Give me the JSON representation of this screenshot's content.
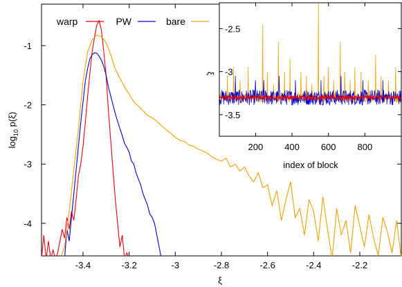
{
  "colors": {
    "warp": "#e8000b",
    "PW": "#0000d0",
    "bare": "#f0a000",
    "axis": "#000000"
  },
  "chart_data": [
    {
      "type": "line",
      "title": "",
      "xlabel": "ξ",
      "ylabel_main": "log",
      "ylabel_sub": "10",
      "ylabel_tail": " p(ξ)",
      "xlim": [
        -3.58,
        -2.02
      ],
      "ylim": [
        -4.55,
        -0.3
      ],
      "xticks": [
        -3.4,
        -3.2,
        -3.0,
        -2.8,
        -2.6,
        -2.4,
        -2.2
      ],
      "xtick_labels": [
        "-3.4",
        "-3.2",
        "-3",
        "-2.8",
        "-2.6",
        "-2.4",
        "-2.2"
      ],
      "yticks": [
        -1,
        -2,
        -3,
        -4
      ],
      "ytick_labels": [
        "-1",
        "-2",
        "-3",
        "-4"
      ],
      "legend": "top-left",
      "series": [
        {
          "name": "warp",
          "color": "#e8000b",
          "x": [
            -3.58,
            -3.57,
            -3.56,
            -3.55,
            -3.54,
            -3.53,
            -3.52,
            -3.51,
            -3.5,
            -3.49,
            -3.48,
            -3.47,
            -3.46,
            -3.45,
            -3.44,
            -3.43,
            -3.42,
            -3.41,
            -3.4,
            -3.39,
            -3.38,
            -3.37,
            -3.36,
            -3.35,
            -3.34,
            -3.33,
            -3.32,
            -3.31,
            -3.3,
            -3.29,
            -3.28,
            -3.27,
            -3.26,
            -3.25,
            -3.24,
            -3.23,
            -3.22,
            -3.21,
            -3.2,
            -3.19
          ],
          "y": [
            -4.6,
            -4.2,
            -4.6,
            -4.3,
            -4.6,
            -4.45,
            -4.6,
            -4.5,
            -4.3,
            -4.1,
            -4.25,
            -3.9,
            -4.1,
            -3.8,
            -3.95,
            -3.6,
            -3.2,
            -3.0,
            -2.7,
            -2.3,
            -1.85,
            -1.45,
            -1.1,
            -0.85,
            -0.65,
            -0.58,
            -0.75,
            -1.1,
            -1.5,
            -2.1,
            -2.6,
            -3.1,
            -3.6,
            -4.0,
            -4.4,
            -4.2,
            -4.6,
            -4.5,
            -4.6,
            -4.6
          ]
        },
        {
          "name": "PW",
          "color": "#0000d0",
          "x": [
            -3.48,
            -3.47,
            -3.46,
            -3.45,
            -3.44,
            -3.43,
            -3.42,
            -3.41,
            -3.4,
            -3.39,
            -3.38,
            -3.37,
            -3.36,
            -3.35,
            -3.34,
            -3.33,
            -3.32,
            -3.31,
            -3.3,
            -3.29,
            -3.28,
            -3.27,
            -3.26,
            -3.25,
            -3.24,
            -3.23,
            -3.22,
            -3.21,
            -3.2,
            -3.19,
            -3.18,
            -3.17,
            -3.16,
            -3.15,
            -3.14,
            -3.13,
            -3.12,
            -3.11,
            -3.1,
            -3.09,
            -3.08,
            -3.07,
            -3.06
          ],
          "y": [
            -4.6,
            -4.1,
            -4.3,
            -3.9,
            -3.5,
            -3.1,
            -2.7,
            -2.3,
            -1.95,
            -1.6,
            -1.38,
            -1.22,
            -1.15,
            -1.12,
            -1.13,
            -1.18,
            -1.25,
            -1.35,
            -1.5,
            -1.7,
            -1.85,
            -2.0,
            -2.15,
            -2.28,
            -2.4,
            -2.52,
            -2.65,
            -2.72,
            -2.8,
            -2.95,
            -3.0,
            -3.15,
            -3.25,
            -3.35,
            -3.5,
            -3.6,
            -3.7,
            -3.85,
            -3.9,
            -4.0,
            -4.2,
            -4.4,
            -4.6
          ]
        },
        {
          "name": "bare",
          "color": "#f0a000",
          "x": [
            -3.58,
            -3.56,
            -3.54,
            -3.52,
            -3.5,
            -3.48,
            -3.46,
            -3.44,
            -3.42,
            -3.4,
            -3.38,
            -3.36,
            -3.34,
            -3.32,
            -3.3,
            -3.28,
            -3.26,
            -3.24,
            -3.22,
            -3.2,
            -3.18,
            -3.16,
            -3.14,
            -3.12,
            -3.1,
            -3.08,
            -3.06,
            -3.04,
            -3.02,
            -3.0,
            -2.98,
            -2.96,
            -2.94,
            -2.92,
            -2.9,
            -2.88,
            -2.86,
            -2.84,
            -2.82,
            -2.8,
            -2.78,
            -2.76,
            -2.74,
            -2.72,
            -2.7,
            -2.68,
            -2.66,
            -2.64,
            -2.62,
            -2.6,
            -2.58,
            -2.56,
            -2.54,
            -2.52,
            -2.5,
            -2.48,
            -2.46,
            -2.44,
            -2.42,
            -2.4,
            -2.38,
            -2.36,
            -2.34,
            -2.32,
            -2.3,
            -2.28,
            -2.26,
            -2.24,
            -2.22,
            -2.2,
            -2.18,
            -2.16,
            -2.14,
            -2.12,
            -2.1,
            -2.08,
            -2.06,
            -2.04,
            -2.02
          ],
          "y": [
            -4.6,
            -4.6,
            -4.6,
            -4.6,
            -4.6,
            -4.4,
            -3.8,
            -3.1,
            -2.4,
            -1.6,
            -1.1,
            -0.9,
            -0.82,
            -0.85,
            -0.95,
            -1.15,
            -1.4,
            -1.55,
            -1.7,
            -1.82,
            -1.95,
            -2.02,
            -2.1,
            -2.18,
            -2.22,
            -2.28,
            -2.35,
            -2.42,
            -2.48,
            -2.55,
            -2.6,
            -2.62,
            -2.68,
            -2.7,
            -2.75,
            -2.78,
            -2.82,
            -2.88,
            -2.92,
            -2.95,
            -2.9,
            -3.05,
            -3.0,
            -3.12,
            -3.05,
            -3.2,
            -3.3,
            -3.15,
            -3.4,
            -3.35,
            -3.7,
            -3.45,
            -3.95,
            -3.6,
            -3.3,
            -3.9,
            -3.75,
            -4.2,
            -3.6,
            -3.8,
            -4.3,
            -3.55,
            -4.1,
            -4.6,
            -3.75,
            -4.2,
            -3.95,
            -4.5,
            -3.7,
            -4.05,
            -4.4,
            -3.85,
            -4.25,
            -4.55,
            -3.9,
            -4.15,
            -4.5,
            -3.95,
            -4.6
          ]
        }
      ]
    },
    {
      "type": "line",
      "title": "",
      "xlabel": "index of block",
      "ylabel": "ξ",
      "xlim": [
        1,
        1000
      ],
      "ylim": [
        -3.75,
        -2.2
      ],
      "xticks": [
        200,
        400,
        600,
        800
      ],
      "xtick_labels": [
        "200",
        "400",
        "600",
        "800"
      ],
      "yticks": [
        -2.5,
        -3.0,
        -3.5
      ],
      "ytick_labels": [
        "-2.5",
        "-3",
        "-3.5"
      ],
      "base_levels": {
        "bare": -3.3,
        "PW": -3.3,
        "warp": -3.3
      },
      "noise_amplitude": {
        "bare": 0.06,
        "PW": 0.09,
        "warp": 0.025
      },
      "spikes_bare": [
        {
          "x": 45,
          "y": -3.05
        },
        {
          "x": 80,
          "y": -2.95
        },
        {
          "x": 115,
          "y": -3.1
        },
        {
          "x": 160,
          "y": -2.95
        },
        {
          "x": 200,
          "y": -3.1
        },
        {
          "x": 240,
          "y": -2.45
        },
        {
          "x": 265,
          "y": -3.0
        },
        {
          "x": 300,
          "y": -3.15
        },
        {
          "x": 325,
          "y": -2.65
        },
        {
          "x": 360,
          "y": -3.0
        },
        {
          "x": 390,
          "y": -2.85
        },
        {
          "x": 420,
          "y": -3.1
        },
        {
          "x": 450,
          "y": -3.0
        },
        {
          "x": 480,
          "y": -3.05
        },
        {
          "x": 510,
          "y": -3.15
        },
        {
          "x": 545,
          "y": -2.2
        },
        {
          "x": 575,
          "y": -3.05
        },
        {
          "x": 600,
          "y": -2.95
        },
        {
          "x": 630,
          "y": -3.1
        },
        {
          "x": 665,
          "y": -2.65
        },
        {
          "x": 690,
          "y": -3.0
        },
        {
          "x": 720,
          "y": -3.1
        },
        {
          "x": 745,
          "y": -2.95
        },
        {
          "x": 780,
          "y": -3.0
        },
        {
          "x": 820,
          "y": -3.1
        },
        {
          "x": 860,
          "y": -2.8
        },
        {
          "x": 890,
          "y": -3.05
        },
        {
          "x": 930,
          "y": -3.1
        },
        {
          "x": 970,
          "y": -2.95
        }
      ],
      "spikes_PW": [
        {
          "x": 90,
          "y": -3.05
        },
        {
          "x": 200,
          "y": -3.1
        },
        {
          "x": 245,
          "y": -3.1
        },
        {
          "x": 330,
          "y": -3.05
        },
        {
          "x": 420,
          "y": -3.1
        },
        {
          "x": 560,
          "y": -3.1
        },
        {
          "x": 670,
          "y": -3.05
        },
        {
          "x": 790,
          "y": -3.1
        },
        {
          "x": 900,
          "y": -3.1
        }
      ]
    }
  ]
}
